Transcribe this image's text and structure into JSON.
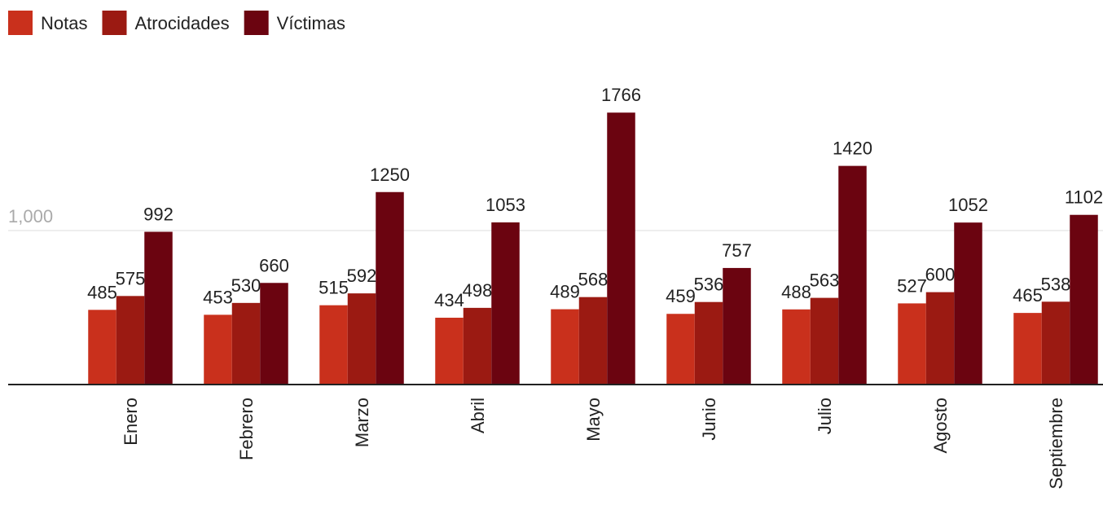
{
  "chart_data": {
    "type": "bar",
    "categories": [
      "Enero",
      "Febrero",
      "Marzo",
      "Abril",
      "Mayo",
      "Junio",
      "Julio",
      "Agosto",
      "Septiembre"
    ],
    "series": [
      {
        "name": "Notas",
        "color": "#c9301c",
        "values": [
          485,
          453,
          515,
          434,
          489,
          459,
          488,
          527,
          465
        ]
      },
      {
        "name": "Atrocidades",
        "color": "#9b1a12",
        "values": [
          575,
          530,
          592,
          498,
          568,
          536,
          563,
          600,
          538
        ]
      },
      {
        "name": "Víctimas",
        "color": "#6b0410",
        "values": [
          992,
          660,
          1250,
          1053,
          1766,
          757,
          1420,
          1052,
          1102
        ]
      }
    ],
    "ylim": [
      0,
      2000
    ],
    "yticks": [
      {
        "value": 1000,
        "label": "1,000"
      }
    ],
    "grid": true,
    "legend": "top-left"
  }
}
